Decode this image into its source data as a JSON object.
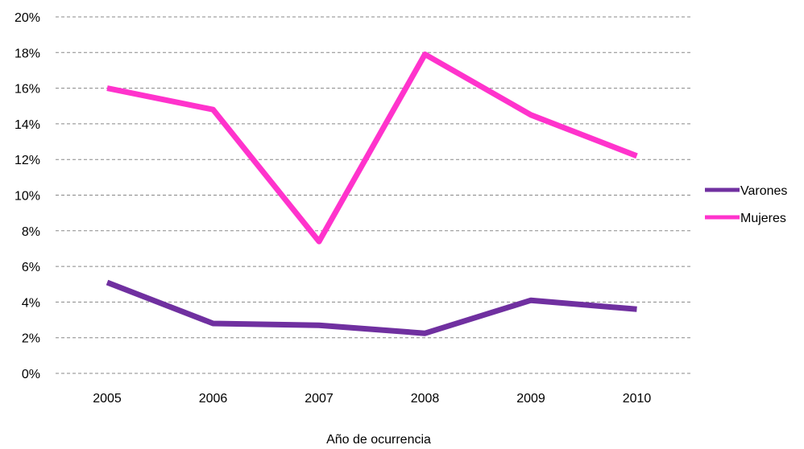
{
  "chart_data": {
    "type": "line",
    "title": "",
    "xlabel": "Año de ocurrencia",
    "ylabel": "",
    "categories": [
      "2005",
      "2006",
      "2007",
      "2008",
      "2009",
      "2010"
    ],
    "ylim": [
      0,
      20
    ],
    "yticks": [
      0,
      2,
      4,
      6,
      8,
      10,
      12,
      14,
      16,
      18,
      20
    ],
    "ytick_labels": [
      "0%",
      "2%",
      "4%",
      "6%",
      "8%",
      "10%",
      "12%",
      "14%",
      "16%",
      "18%",
      "20%"
    ],
    "grid": true,
    "legend_position": "right",
    "series": [
      {
        "name": "Varones",
        "color": "#7030A0",
        "values": [
          5.1,
          2.8,
          2.7,
          2.25,
          4.1,
          3.6
        ]
      },
      {
        "name": "Mujeres",
        "color": "#FF33CC",
        "values": [
          16.0,
          14.8,
          7.4,
          17.9,
          14.5,
          12.2
        ]
      }
    ]
  }
}
